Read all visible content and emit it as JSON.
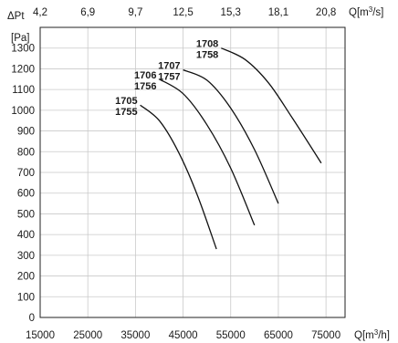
{
  "chart_data": {
    "type": "line",
    "title": "",
    "ylabel_top": "ΔPt",
    "yunit": "[Pa]",
    "xlabel": "Q[m³/h]",
    "x2label": "Q[m³/s]",
    "xlim": [
      15000,
      79000
    ],
    "ylim": [
      0,
      1400
    ],
    "x_ticks": [
      "15000",
      "25000",
      "35000",
      "45000",
      "55000",
      "65000",
      "75000"
    ],
    "x_tick_values": [
      15000,
      25000,
      35000,
      45000,
      55000,
      65000,
      75000
    ],
    "x2_ticks": [
      "4,2",
      "6,9",
      "9,7",
      "12,5",
      "15,3",
      "18,1",
      "20,8"
    ],
    "x2_tick_values": [
      15000,
      25000,
      35000,
      45000,
      55000,
      65000,
      75000
    ],
    "y_ticks": [
      0,
      100,
      200,
      300,
      400,
      500,
      600,
      700,
      800,
      900,
      1000,
      1100,
      1200,
      1300
    ],
    "grid": true,
    "series": [
      {
        "name": "1705 / 1755",
        "label_top": "1705",
        "label_bottom": "1755",
        "x": [
          36000,
          40000,
          44000,
          48000,
          52000
        ],
        "y": [
          1025,
          950,
          800,
          590,
          330
        ]
      },
      {
        "name": "1706 / 1756",
        "label_top": "1706",
        "label_bottom": "1756",
        "x": [
          40000,
          45000,
          50000,
          55000,
          60000
        ],
        "y": [
          1150,
          1080,
          930,
          720,
          445
        ]
      },
      {
        "name": "1707 / 1757",
        "label_top": "1707",
        "label_bottom": "1757",
        "x": [
          45000,
          50000,
          55000,
          60000,
          65000
        ],
        "y": [
          1195,
          1145,
          1010,
          810,
          550
        ]
      },
      {
        "name": "1708 / 1758",
        "label_top": "1708",
        "label_bottom": "1758",
        "x": [
          53000,
          58000,
          63000,
          68000,
          74000
        ],
        "y": [
          1300,
          1245,
          1130,
          960,
          745
        ]
      }
    ]
  }
}
